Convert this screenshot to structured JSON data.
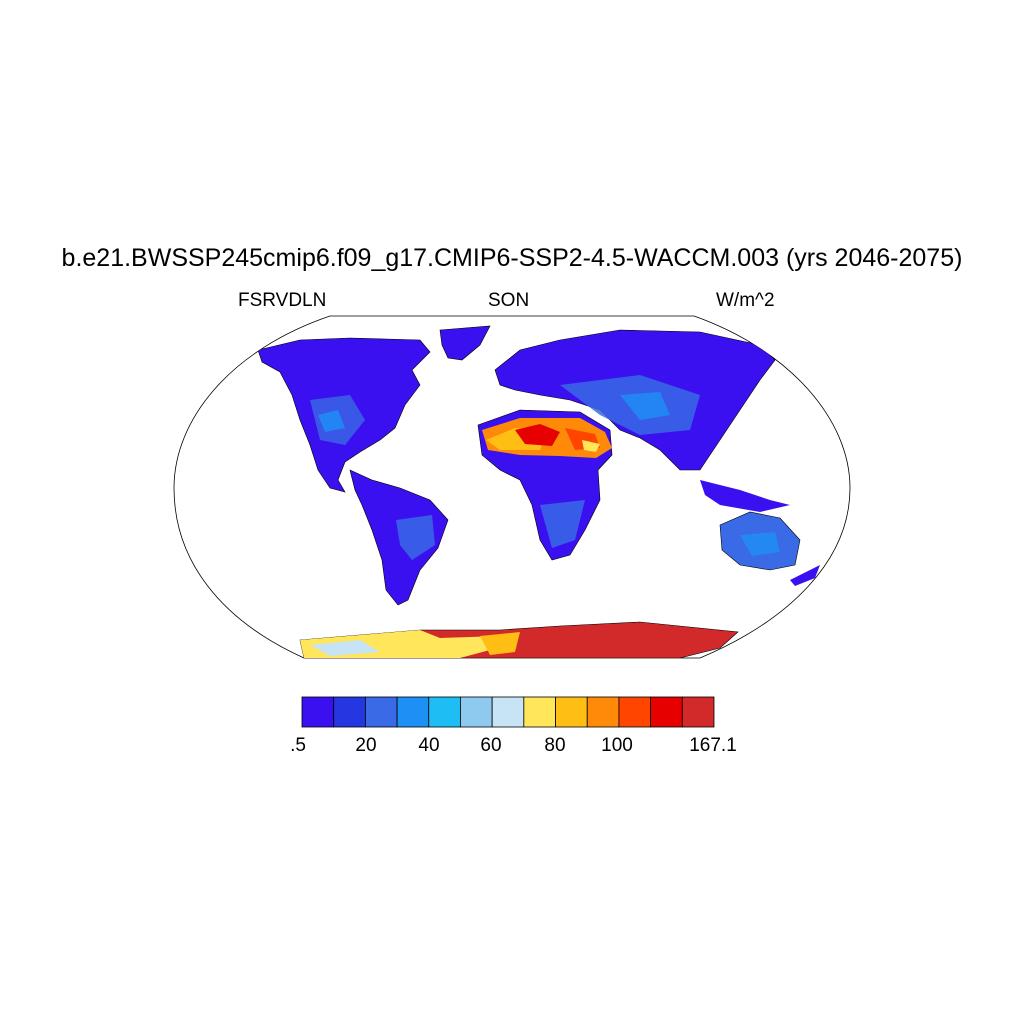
{
  "title": "b.e21.BWSSP245cmip6.f09_g17.CMIP6-SSP2-4.5-WACCM.003 (yrs 2046-2075)",
  "subtitle": {
    "left": "FSRVDLN",
    "center": "SON",
    "right": "W/m^2"
  },
  "colorbar": {
    "colors": [
      "#3b10f0",
      "#2437e0",
      "#3a6ae6",
      "#1e90f5",
      "#1ebef5",
      "#8ecaef",
      "#c6e4f6",
      "#ffe65a",
      "#ffbe14",
      "#ff8a0a",
      "#ff4500",
      "#e60000",
      "#d22a2a"
    ],
    "labels": [
      ".5",
      "20",
      "40",
      "60",
      "80",
      "100",
      "167.1"
    ]
  }
}
